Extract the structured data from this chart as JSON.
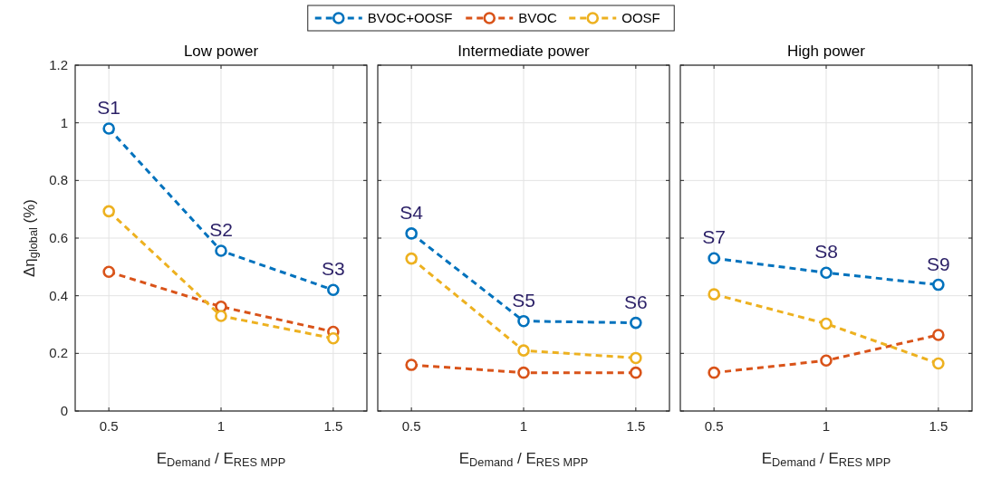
{
  "chart_data": [
    {
      "type": "line",
      "title": "Low power",
      "xlabel": "E$_{Demand}$ / E$_{RES MPP}$",
      "ylabel": "Δη$_{global}$ (%)",
      "x": [
        0.5,
        1,
        1.5
      ],
      "xlim": [
        0.35,
        1.65
      ],
      "xticks": [
        0.5,
        1,
        1.5
      ],
      "ylim": [
        0,
        1.2
      ],
      "yticks": [
        0,
        0.2,
        0.4,
        0.6,
        0.8,
        1,
        1.2
      ],
      "grid": true,
      "legend": "top",
      "marker": "circle",
      "line_style": "dashed",
      "series": [
        {
          "name": "BVOC+OOSF",
          "color": "#0072bd",
          "values": [
            0.98,
            0.556,
            0.42
          ]
        },
        {
          "name": "BVOC",
          "color": "#d95319",
          "values": [
            0.483,
            0.362,
            0.275
          ]
        },
        {
          "name": "OOSF",
          "color": "#edb120",
          "values": [
            0.693,
            0.33,
            0.252
          ]
        }
      ],
      "annotations": [
        {
          "text": "S1",
          "x": 0.5,
          "y": 0.98
        },
        {
          "text": "S2",
          "x": 1,
          "y": 0.556
        },
        {
          "text": "S3",
          "x": 1.5,
          "y": 0.42
        }
      ]
    },
    {
      "type": "line",
      "title": "Intermediate power",
      "xlabel": "E$_{Demand}$ / E$_{RES MPP}$",
      "x": [
        0.5,
        1,
        1.5
      ],
      "xlim": [
        0.35,
        1.65
      ],
      "xticks": [
        0.5,
        1,
        1.5
      ],
      "ylim": [
        0,
        1.2
      ],
      "yticks": [
        0,
        0.2,
        0.4,
        0.6,
        0.8,
        1,
        1.2
      ],
      "tick_labels": "x",
      "grid": true,
      "marker": "circle",
      "line_style": "dashed",
      "series": [
        {
          "color": "#0072bd",
          "values": [
            0.616,
            0.312,
            0.306
          ]
        },
        {
          "color": "#d95319",
          "values": [
            0.16,
            0.133,
            0.133
          ]
        },
        {
          "color": "#edb120",
          "values": [
            0.529,
            0.21,
            0.184
          ]
        }
      ],
      "annotations": [
        {
          "text": "S4",
          "x": 0.5,
          "y": 0.616
        },
        {
          "text": "S5",
          "x": 1,
          "y": 0.312
        },
        {
          "text": "S6",
          "x": 1.5,
          "y": 0.306
        }
      ]
    },
    {
      "type": "line",
      "title": "High power",
      "xlabel": "E$_{Demand}$ / E$_{RES MPP}$",
      "x": [
        0.5,
        1,
        1.5
      ],
      "xlim": [
        0.35,
        1.65
      ],
      "xticks": [
        0.5,
        1,
        1.5
      ],
      "ylim": [
        0,
        1.2
      ],
      "yticks": [
        0,
        0.2,
        0.4,
        0.6,
        0.8,
        1,
        1.2
      ],
      "tick_labels": "x",
      "grid": true,
      "marker": "circle",
      "line_style": "dashed",
      "series": [
        {
          "color": "#0072bd",
          "values": [
            0.53,
            0.48,
            0.438
          ]
        },
        {
          "color": "#d95319",
          "values": [
            0.133,
            0.175,
            0.264
          ]
        },
        {
          "color": "#edb120",
          "values": [
            0.405,
            0.303,
            0.165
          ]
        }
      ],
      "annotations": [
        {
          "text": "S7",
          "x": 0.5,
          "y": 0.53
        },
        {
          "text": "S8",
          "x": 1,
          "y": 0.48
        },
        {
          "text": "S9",
          "x": 1.5,
          "y": 0.438
        }
      ]
    }
  ]
}
